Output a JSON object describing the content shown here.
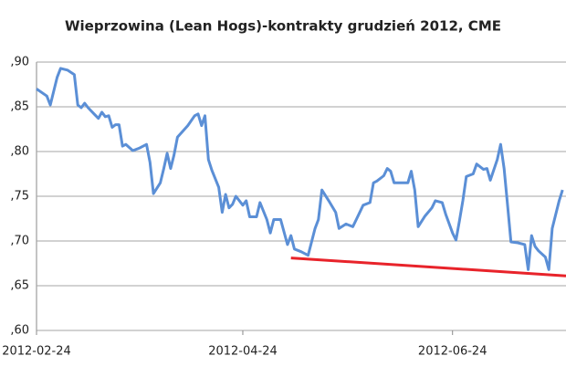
{
  "chart_data": {
    "type": "line",
    "title": "Wieprzowina (Lean Hogs)-kontrakty grudzień 2012, CME",
    "x": [
      "2012-02-24",
      "2012-02-27",
      "2012-02-28",
      "2012-03-01",
      "2012-03-02",
      "2012-03-04",
      "2012-03-06",
      "2012-03-07",
      "2012-03-08",
      "2012-03-09",
      "2012-03-10",
      "2012-03-12",
      "2012-03-13",
      "2012-03-14",
      "2012-03-15",
      "2012-03-16",
      "2012-03-17",
      "2012-03-18",
      "2012-03-19",
      "2012-03-20",
      "2012-03-21",
      "2012-03-23",
      "2012-03-25",
      "2012-03-27",
      "2012-03-28",
      "2012-03-29",
      "2012-03-31",
      "2012-04-01",
      "2012-04-02",
      "2012-04-03",
      "2012-04-04",
      "2012-04-05",
      "2012-04-08",
      "2012-04-10",
      "2012-04-11",
      "2012-04-12",
      "2012-04-13",
      "2012-04-14",
      "2012-04-15",
      "2012-04-17",
      "2012-04-18",
      "2012-04-19",
      "2012-04-20",
      "2012-04-21",
      "2012-04-22",
      "2012-04-24",
      "2012-04-25",
      "2012-04-26",
      "2012-04-28",
      "2012-04-29",
      "2012-05-01",
      "2012-05-02",
      "2012-05-03",
      "2012-05-05",
      "2012-05-07",
      "2012-05-08",
      "2012-05-09",
      "2012-05-11",
      "2012-05-13",
      "2012-05-15",
      "2012-05-16",
      "2012-05-17",
      "2012-05-19",
      "2012-05-21",
      "2012-05-22",
      "2012-05-24",
      "2012-05-26",
      "2012-05-27",
      "2012-05-29",
      "2012-05-31",
      "2012-06-01",
      "2012-06-02",
      "2012-06-04",
      "2012-06-05",
      "2012-06-06",
      "2012-06-07",
      "2012-06-09",
      "2012-06-11",
      "2012-06-12",
      "2012-06-13",
      "2012-06-14",
      "2012-06-16",
      "2012-06-18",
      "2012-06-19",
      "2012-06-21",
      "2012-06-22",
      "2012-06-24",
      "2012-06-25",
      "2012-06-26",
      "2012-06-27",
      "2012-06-28",
      "2012-06-30",
      "2012-07-01",
      "2012-07-03",
      "2012-07-04",
      "2012-07-05",
      "2012-07-07",
      "2012-07-08",
      "2012-07-09",
      "2012-07-10",
      "2012-07-11",
      "2012-07-13",
      "2012-07-15",
      "2012-07-16",
      "2012-07-17",
      "2012-07-18",
      "2012-07-19",
      "2012-07-21",
      "2012-07-22",
      "2012-07-23",
      "2012-07-25",
      "2012-07-26"
    ],
    "values": [
      0.87,
      0.862,
      0.852,
      0.883,
      0.893,
      0.891,
      0.886,
      0.852,
      0.849,
      0.854,
      0.849,
      0.841,
      0.837,
      0.844,
      0.839,
      0.84,
      0.827,
      0.83,
      0.83,
      0.806,
      0.808,
      0.801,
      0.804,
      0.808,
      0.788,
      0.753,
      0.765,
      0.781,
      0.798,
      0.781,
      0.796,
      0.816,
      0.829,
      0.84,
      0.842,
      0.829,
      0.84,
      0.791,
      0.779,
      0.76,
      0.732,
      0.752,
      0.737,
      0.741,
      0.75,
      0.74,
      0.745,
      0.727,
      0.727,
      0.743,
      0.724,
      0.709,
      0.724,
      0.724,
      0.696,
      0.706,
      0.691,
      0.688,
      0.684,
      0.714,
      0.724,
      0.757,
      0.745,
      0.732,
      0.714,
      0.719,
      0.716,
      0.724,
      0.74,
      0.743,
      0.765,
      0.767,
      0.773,
      0.781,
      0.778,
      0.765,
      0.765,
      0.765,
      0.778,
      0.757,
      0.716,
      0.728,
      0.737,
      0.745,
      0.743,
      0.73,
      0.709,
      0.701,
      0.722,
      0.745,
      0.772,
      0.775,
      0.786,
      0.78,
      0.781,
      0.768,
      0.791,
      0.808,
      0.781,
      0.74,
      0.699,
      0.698,
      0.696,
      0.668,
      0.706,
      0.694,
      0.689,
      0.682,
      0.668,
      0.714,
      0.745,
      0.757
    ],
    "color": "#5b8fd6",
    "trend_line": {
      "x": [
        "2012-05-08",
        "2012-07-27"
      ],
      "values": [
        0.681,
        0.661
      ],
      "color": "#e8232a"
    },
    "xlim": [
      "2012-02-24",
      "2012-07-27"
    ],
    "xticks": [
      "2012-02-24",
      "2012-04-24",
      "2012-06-24"
    ],
    "ylim": [
      0.6,
      0.9
    ],
    "yticks": [
      {
        "value": 0.6,
        "label": ",60"
      },
      {
        "value": 0.65,
        "label": ",65"
      },
      {
        "value": 0.7,
        "label": ",70"
      },
      {
        "value": 0.75,
        "label": ",75"
      },
      {
        "value": 0.8,
        "label": ",80"
      },
      {
        "value": 0.85,
        "label": ",85"
      },
      {
        "value": 0.9,
        "label": ",90"
      }
    ],
    "grid": true
  }
}
